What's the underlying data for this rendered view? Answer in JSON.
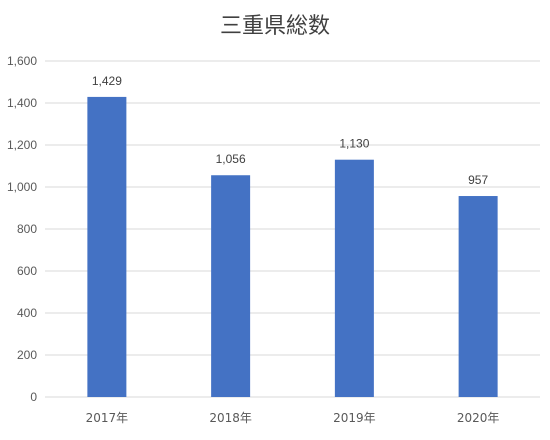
{
  "chart_data": {
    "type": "bar",
    "title": "三重県総数",
    "xlabel": "",
    "ylabel": "",
    "categories": [
      "2017年",
      "2018年",
      "2019年",
      "2020年"
    ],
    "values": [
      1429,
      1056,
      1130,
      957
    ],
    "data_labels": [
      "1,429",
      "1,056",
      "1,130",
      "957"
    ],
    "ylim": [
      0,
      1600
    ],
    "yticks": [
      0,
      200,
      400,
      600,
      800,
      1000,
      1200,
      1400,
      1600
    ],
    "ytick_labels": [
      "0",
      "200",
      "400",
      "600",
      "800",
      "1,000",
      "1,200",
      "1,400",
      "1,600"
    ],
    "grid": true,
    "legend": "none",
    "bar_color": "#4472C4",
    "grid_color": "#D9D9D9"
  }
}
